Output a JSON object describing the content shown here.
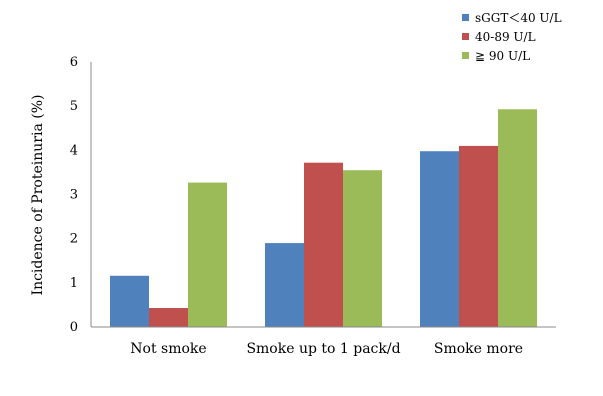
{
  "chart_data": {
    "type": "bar",
    "title": "",
    "xlabel": "",
    "ylabel": "Incidence of Proteinuria (%)",
    "ylim": [
      0,
      6
    ],
    "yticks": [
      "0",
      "1",
      "2",
      "3",
      "4",
      "5",
      "6"
    ],
    "categories": [
      "Not smoke",
      "Smoke up to 1 pack/d",
      "Smoke more"
    ],
    "series": [
      {
        "name": "sGGT＜40 U/L",
        "color": "#4f81bd",
        "values": [
          1.16,
          1.9,
          3.98
        ]
      },
      {
        "name": "40-89 U/L",
        "color": "#c0504d",
        "values": [
          0.43,
          3.72,
          4.1
        ]
      },
      {
        "name": "≧ 90 U/L",
        "color": "#9bbb59",
        "values": [
          3.27,
          3.55,
          4.93
        ]
      }
    ],
    "grid": false,
    "legend_position": "top-right"
  }
}
